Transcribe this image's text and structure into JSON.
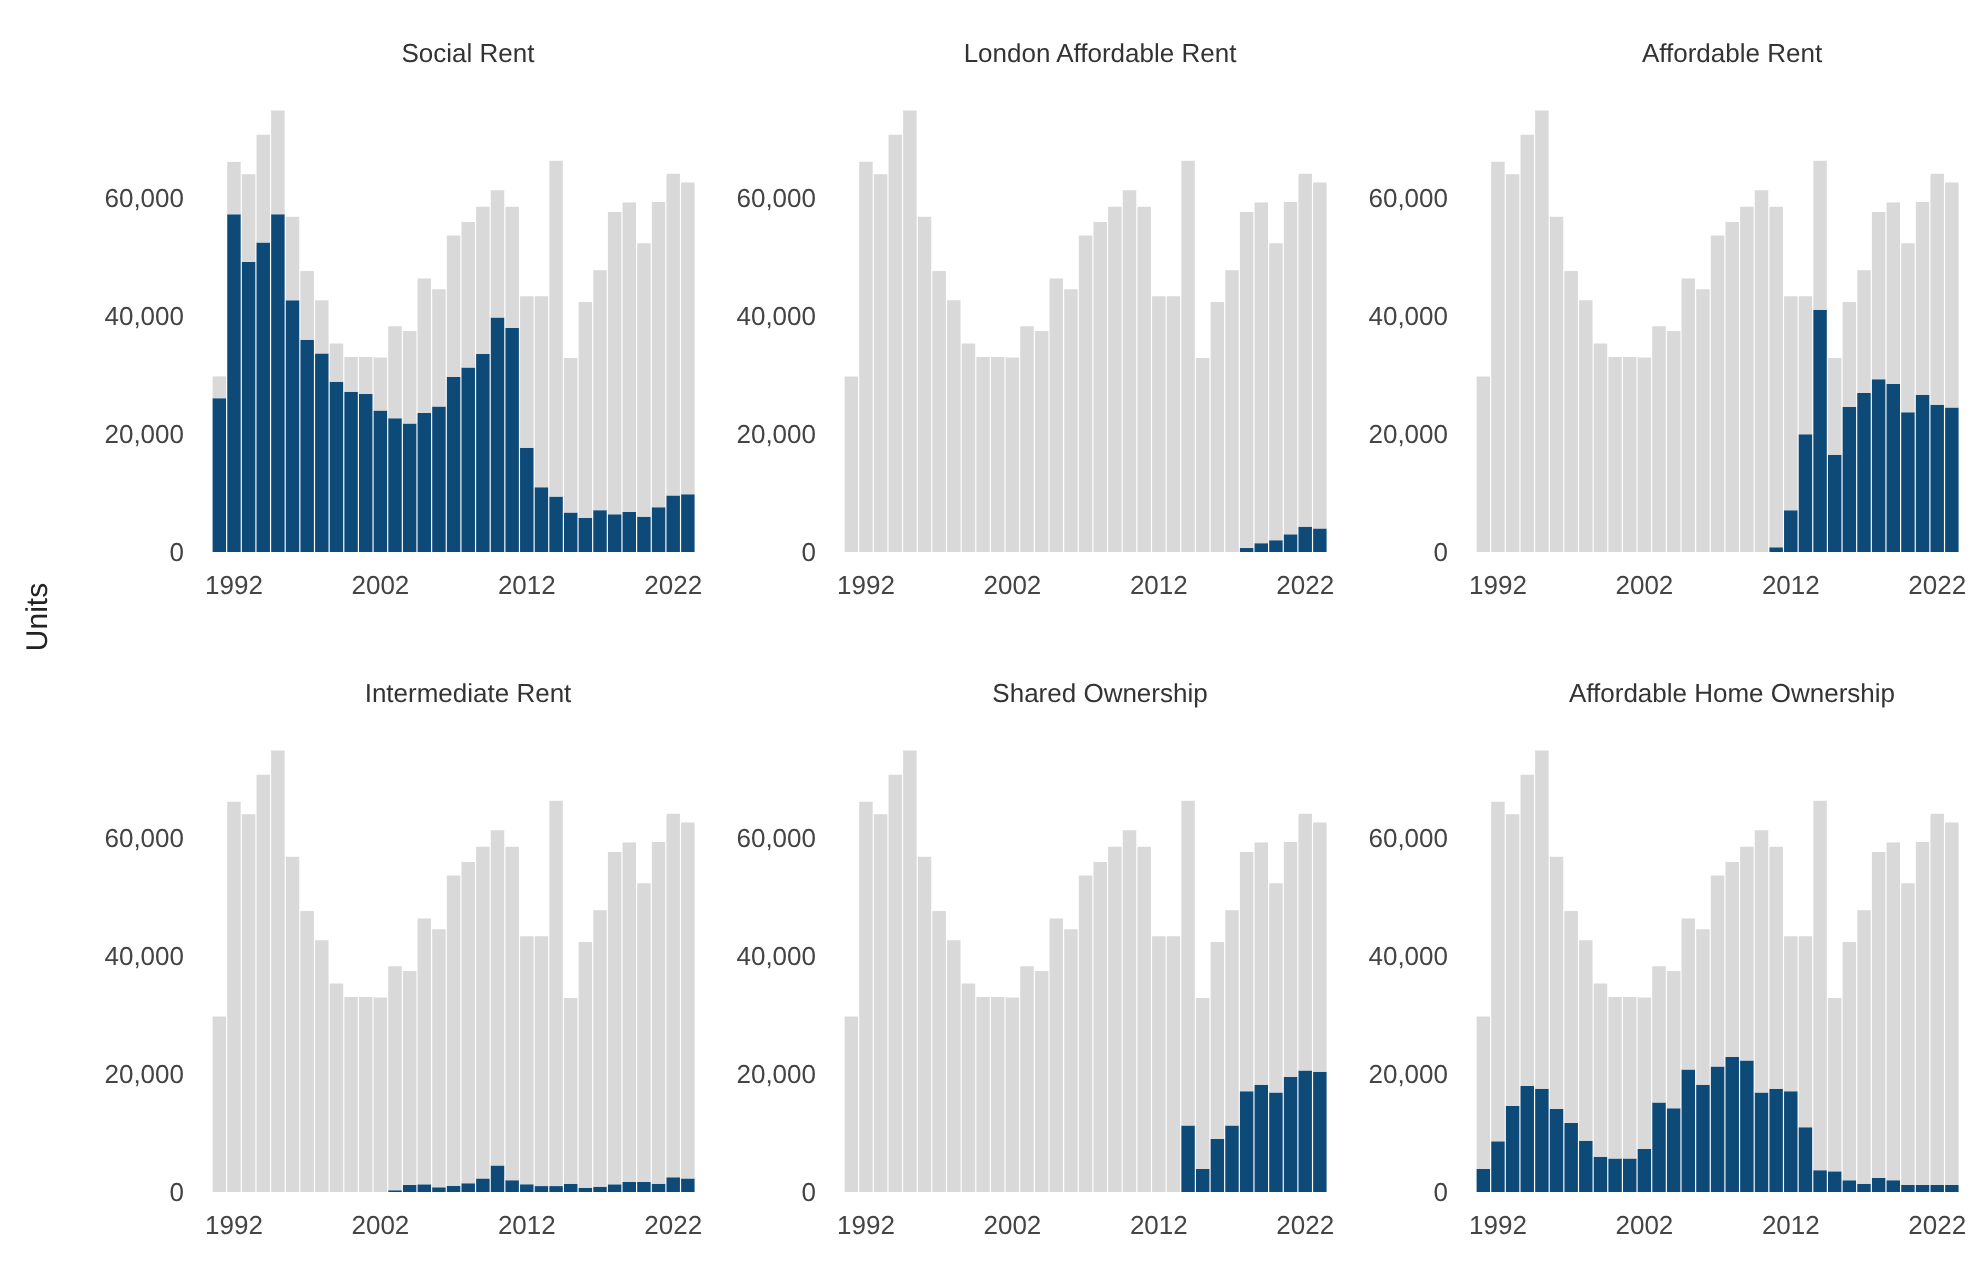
{
  "chart_data": [
    {
      "type": "bar",
      "title": "Social Rent",
      "stacked": true,
      "categories": [
        null,
        "1992",
        null,
        null,
        null,
        null,
        null,
        null,
        null,
        null,
        null,
        "2002",
        null,
        null,
        null,
        null,
        null,
        null,
        null,
        null,
        null,
        "2012",
        null,
        null,
        null,
        null,
        null,
        null,
        null,
        null,
        null,
        "2022",
        null
      ],
      "series": [
        {
          "color": "#0d4a78",
          "values": [
            26100,
            57300,
            49200,
            52500,
            57300,
            42700,
            36000,
            33700,
            28900,
            27200,
            26800,
            24000,
            22700,
            21800,
            23600,
            24700,
            29700,
            31300,
            33600,
            39800,
            38000,
            17700,
            11000,
            9400,
            6700,
            5800,
            7100,
            6400,
            6800,
            6000,
            7600,
            9600,
            9800
          ]
        },
        {
          "color": "#d9d9d9",
          "values": [
            3700,
            8900,
            14900,
            18300,
            17600,
            14200,
            11700,
            9000,
            6500,
            5900,
            6300,
            9000,
            15600,
            15700,
            22800,
            19900,
            24000,
            24700,
            25000,
            21600,
            20600,
            25700,
            32400,
            57000,
            26200,
            36600,
            40700,
            51300,
            52500,
            46400,
            51800,
            54600,
            52900
          ]
        }
      ],
      "ylim": [
        0,
        75000
      ],
      "yticks": [
        {
          "value": 0,
          "label": "0"
        },
        {
          "value": 20000,
          "label": "20,000"
        },
        {
          "value": 40000,
          "label": "40,000"
        },
        {
          "value": 60000,
          "label": "60,000"
        }
      ]
    },
    {
      "type": "bar",
      "title": "London Affordable Rent",
      "stacked": true,
      "categories": [
        null,
        "1992",
        null,
        null,
        null,
        null,
        null,
        null,
        null,
        null,
        null,
        "2002",
        null,
        null,
        null,
        null,
        null,
        null,
        null,
        null,
        null,
        "2012",
        null,
        null,
        null,
        null,
        null,
        null,
        null,
        null,
        null,
        "2022",
        null
      ],
      "series": [
        {
          "color": "#0d4a78",
          "values": [
            null,
            null,
            null,
            null,
            null,
            null,
            null,
            null,
            null,
            null,
            null,
            null,
            null,
            null,
            null,
            null,
            null,
            null,
            null,
            null,
            null,
            null,
            null,
            null,
            null,
            null,
            null,
            700,
            1500,
            2000,
            3000,
            4300,
            4000
          ]
        },
        {
          "color": "#d9d9d9",
          "values": [
            29800,
            66200,
            64100,
            70800,
            74900,
            56900,
            47700,
            42700,
            35400,
            33100,
            33100,
            33000,
            38300,
            37500,
            46400,
            44600,
            53700,
            56000,
            58600,
            61400,
            58600,
            43400,
            43400,
            66400,
            32900,
            42400,
            47800,
            57000,
            57800,
            50400,
            56400,
            59900,
            58700
          ]
        }
      ],
      "ylim": [
        0,
        75000
      ],
      "yticks": [
        {
          "value": 0,
          "label": "0"
        },
        {
          "value": 20000,
          "label": "20,000"
        },
        {
          "value": 40000,
          "label": "40,000"
        },
        {
          "value": 60000,
          "label": "60,000"
        }
      ]
    },
    {
      "type": "bar",
      "title": "Affordable Rent",
      "stacked": true,
      "categories": [
        null,
        "1992",
        null,
        null,
        null,
        null,
        null,
        null,
        null,
        null,
        null,
        "2002",
        null,
        null,
        null,
        null,
        null,
        null,
        null,
        null,
        null,
        "2012",
        null,
        null,
        null,
        null,
        null,
        null,
        null,
        null,
        null,
        "2022",
        null
      ],
      "series": [
        {
          "color": "#0d4a78",
          "values": [
            null,
            null,
            null,
            null,
            null,
            null,
            null,
            null,
            null,
            null,
            null,
            null,
            null,
            null,
            null,
            null,
            null,
            null,
            null,
            null,
            800,
            7100,
            20000,
            41100,
            16500,
            24600,
            27000,
            29300,
            28500,
            23700,
            26700,
            25000,
            24500
          ]
        },
        {
          "color": "#d9d9d9",
          "values": [
            29800,
            66200,
            64100,
            70800,
            74900,
            56900,
            47700,
            42700,
            35400,
            33100,
            33100,
            33000,
            38300,
            37500,
            46400,
            44600,
            53700,
            56000,
            58600,
            61400,
            57800,
            36300,
            23400,
            25300,
            16400,
            17800,
            20800,
            28400,
            30800,
            28700,
            32700,
            39200,
            38200
          ]
        }
      ],
      "ylim": [
        0,
        75000
      ],
      "yticks": [
        {
          "value": 0,
          "label": "0"
        },
        {
          "value": 20000,
          "label": "20,000"
        },
        {
          "value": 40000,
          "label": "40,000"
        },
        {
          "value": 60000,
          "label": "60,000"
        }
      ]
    },
    {
      "type": "bar",
      "title": "Intermediate Rent",
      "ylabel": "Units",
      "stacked": true,
      "categories": [
        null,
        "1992",
        null,
        null,
        null,
        null,
        null,
        null,
        null,
        null,
        null,
        "2002",
        null,
        null,
        null,
        null,
        null,
        null,
        null,
        null,
        null,
        "2012",
        null,
        null,
        null,
        null,
        null,
        null,
        null,
        null,
        null,
        "2022",
        null
      ],
      "series": [
        {
          "color": "#0d4a78",
          "values": [
            null,
            null,
            null,
            null,
            null,
            null,
            null,
            null,
            null,
            null,
            null,
            null,
            300,
            1200,
            1300,
            800,
            1000,
            1500,
            2300,
            4500,
            2000,
            1300,
            1000,
            1000,
            1400,
            700,
            900,
            1300,
            1700,
            1700,
            1400,
            2500,
            2300
          ]
        },
        {
          "color": "#d9d9d9",
          "values": [
            29800,
            66200,
            64100,
            70800,
            74900,
            56900,
            47700,
            42700,
            35400,
            33100,
            33100,
            33000,
            38000,
            36300,
            45100,
            43800,
            52700,
            54500,
            56300,
            56900,
            56600,
            42100,
            42400,
            65400,
            31500,
            41700,
            46900,
            56400,
            57600,
            50700,
            58000,
            61700,
            60400
          ]
        }
      ],
      "ylim": [
        0,
        75000
      ],
      "yticks": [
        {
          "value": 0,
          "label": "0"
        },
        {
          "value": 20000,
          "label": "20,000"
        },
        {
          "value": 40000,
          "label": "40,000"
        },
        {
          "value": 60000,
          "label": "60,000"
        }
      ]
    },
    {
      "type": "bar",
      "title": "Shared Ownership",
      "stacked": true,
      "categories": [
        null,
        "1992",
        null,
        null,
        null,
        null,
        null,
        null,
        null,
        null,
        null,
        "2002",
        null,
        null,
        null,
        null,
        null,
        null,
        null,
        null,
        null,
        "2012",
        null,
        null,
        null,
        null,
        null,
        null,
        null,
        null,
        null,
        "2022",
        null
      ],
      "series": [
        {
          "color": "#0d4a78",
          "values": [
            null,
            null,
            null,
            null,
            null,
            null,
            null,
            null,
            null,
            null,
            null,
            null,
            null,
            null,
            null,
            null,
            null,
            null,
            null,
            null,
            null,
            null,
            null,
            11300,
            3900,
            9000,
            11300,
            17100,
            18200,
            16900,
            19500,
            20600,
            20400
          ]
        },
        {
          "color": "#d9d9d9",
          "values": [
            29800,
            66200,
            64100,
            70800,
            74900,
            56900,
            47700,
            42700,
            35400,
            33100,
            33100,
            33000,
            38300,
            37500,
            46400,
            44600,
            53700,
            56000,
            58600,
            61400,
            58600,
            43400,
            43400,
            55100,
            29000,
            33400,
            36500,
            40600,
            41100,
            35500,
            39900,
            43600,
            42300
          ]
        }
      ],
      "ylim": [
        0,
        75000
      ],
      "yticks": [
        {
          "value": 0,
          "label": "0"
        },
        {
          "value": 20000,
          "label": "20,000"
        },
        {
          "value": 40000,
          "label": "40,000"
        },
        {
          "value": 60000,
          "label": "60,000"
        }
      ]
    },
    {
      "type": "bar",
      "title": "Affordable Home Ownership",
      "stacked": true,
      "categories": [
        null,
        "1992",
        null,
        null,
        null,
        null,
        null,
        null,
        null,
        null,
        null,
        "2002",
        null,
        null,
        null,
        null,
        null,
        null,
        null,
        null,
        null,
        "2012",
        null,
        null,
        null,
        null,
        null,
        null,
        null,
        null,
        null,
        "2022",
        null
      ],
      "series": [
        {
          "color": "#0d4a78",
          "values": [
            3900,
            8600,
            14600,
            18000,
            17500,
            14100,
            11700,
            8700,
            6000,
            5700,
            5700,
            7300,
            15200,
            14200,
            20800,
            18200,
            21300,
            22900,
            22300,
            16900,
            17500,
            17100,
            11000,
            3700,
            3500,
            2000,
            1400,
            2400,
            2000,
            1200,
            1200,
            1200,
            1200
          ]
        },
        {
          "color": "#d9d9d9",
          "values": [
            25900,
            57600,
            49500,
            52800,
            57400,
            42800,
            36000,
            34000,
            29400,
            27400,
            27400,
            25700,
            23100,
            23300,
            25600,
            26400,
            32400,
            33100,
            36300,
            44500,
            41100,
            26300,
            32400,
            62700,
            29400,
            40400,
            46400,
            55300,
            57300,
            51200,
            58200,
            63000,
            61500
          ]
        }
      ],
      "ylim": [
        0,
        75000
      ],
      "yticks": [
        {
          "value": 0,
          "label": "0"
        },
        {
          "value": 20000,
          "label": "20,000"
        },
        {
          "value": 40000,
          "label": "40,000"
        },
        {
          "value": 60000,
          "label": "60,000"
        }
      ]
    }
  ]
}
